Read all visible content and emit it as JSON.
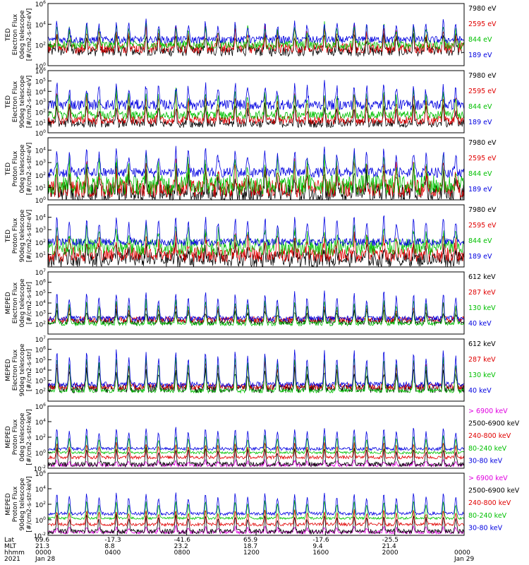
{
  "chart_data": [
    {
      "type": "line",
      "title": "",
      "ylabel_lines": [
        "TED",
        "Electron Flux",
        "0deg telescope",
        "[#/cm2-s-str-eV]"
      ],
      "ylim": [
        1,
        1000000
      ],
      "yscale": "log",
      "yticks": [
        {
          "base": "10",
          "exp": "0"
        },
        {
          "base": "10",
          "exp": "2"
        },
        {
          "base": "10",
          "exp": "4"
        },
        {
          "base": "10",
          "exp": "6"
        }
      ],
      "series": [
        {
          "name": "7980 eV",
          "color": "#000000",
          "baseline": 1.4,
          "peak": 3.0,
          "noise": 0.5
        },
        {
          "name": "2595 eV",
          "color": "#e00000",
          "baseline": 1.7,
          "peak": 3.6,
          "noise": 0.5
        },
        {
          "name": "844 eV",
          "color": "#00c000",
          "baseline": 2.0,
          "peak": 3.9,
          "noise": 0.4
        },
        {
          "name": "189 eV",
          "color": "#0000e0",
          "baseline": 2.5,
          "peak": 4.2,
          "noise": 0.35
        }
      ]
    },
    {
      "type": "line",
      "title": "",
      "ylabel_lines": [
        "TED",
        "Electron Flux",
        "90deg telescope",
        "[#/cm2-s-str-eV]"
      ],
      "ylim": [
        1,
        1000000
      ],
      "yscale": "log",
      "yticks": [
        {
          "base": "10",
          "exp": "0"
        },
        {
          "base": "10",
          "exp": "1"
        },
        {
          "base": "10",
          "exp": "2"
        },
        {
          "base": "10",
          "exp": "3"
        },
        {
          "base": "10",
          "exp": "4"
        },
        {
          "base": "10",
          "exp": "5"
        },
        {
          "base": "10",
          "exp": "6"
        }
      ],
      "series": [
        {
          "name": "7980 eV",
          "color": "#000000",
          "baseline": 0.9,
          "peak": 2.6,
          "noise": 0.4
        },
        {
          "name": "2595 eV",
          "color": "#e00000",
          "baseline": 1.2,
          "peak": 3.6,
          "noise": 0.4
        },
        {
          "name": "844 eV",
          "color": "#00c000",
          "baseline": 1.7,
          "peak": 4.0,
          "noise": 0.4
        },
        {
          "name": "189 eV",
          "color": "#0000e0",
          "baseline": 2.7,
          "peak": 4.6,
          "noise": 0.5
        }
      ]
    },
    {
      "type": "line",
      "title": "",
      "ylabel_lines": [
        "TED",
        "Proton Flux",
        "0deg telescope",
        "[#/cm2-s-str-eV]"
      ],
      "ylim": [
        1,
        100000
      ],
      "yscale": "log",
      "yticks": [
        {
          "base": "10",
          "exp": "0"
        },
        {
          "base": "10",
          "exp": "1"
        },
        {
          "base": "10",
          "exp": "2"
        },
        {
          "base": "10",
          "exp": "3"
        },
        {
          "base": "10",
          "exp": "4"
        }
      ],
      "series": [
        {
          "name": "7980 eV",
          "color": "#000000",
          "baseline": 0.5,
          "peak": 2.2,
          "noise": 0.8
        },
        {
          "name": "2595 eV",
          "color": "#e00000",
          "baseline": 0.9,
          "peak": 2.8,
          "noise": 0.7
        },
        {
          "name": "844 eV",
          "color": "#00c000",
          "baseline": 1.2,
          "peak": 3.2,
          "noise": 0.8
        },
        {
          "name": "189 eV",
          "color": "#0000e0",
          "baseline": 2.2,
          "peak": 4.0,
          "noise": 0.4
        }
      ]
    },
    {
      "type": "line",
      "title": "",
      "ylabel_lines": [
        "TED",
        "Proton Flux",
        "90deg telescope",
        "[#/cm2-s-str-eV]"
      ],
      "ylim": [
        1,
        100000
      ],
      "yscale": "log",
      "yticks": [
        {
          "base": "10",
          "exp": "1"
        },
        {
          "base": "10",
          "exp": "2"
        },
        {
          "base": "10",
          "exp": "3"
        },
        {
          "base": "10",
          "exp": "4"
        }
      ],
      "series": [
        {
          "name": "7980 eV",
          "color": "#000000",
          "baseline": 0.6,
          "peak": 1.6,
          "noise": 0.6
        },
        {
          "name": "2595 eV",
          "color": "#e00000",
          "baseline": 1.0,
          "peak": 2.4,
          "noise": 0.6
        },
        {
          "name": "844 eV",
          "color": "#00c000",
          "baseline": 1.6,
          "peak": 3.0,
          "noise": 0.7
        },
        {
          "name": "189 eV",
          "color": "#0000e0",
          "baseline": 2.0,
          "peak": 4.0,
          "noise": 0.3
        }
      ]
    },
    {
      "type": "line",
      "title": "",
      "ylabel_lines": [
        "MEPED",
        "Electron Flux",
        "0deg telescope",
        "[#/cm2-s-str]"
      ],
      "ylim": [
        10,
        10000000
      ],
      "yscale": "log",
      "yticks": [
        {
          "base": "10",
          "exp": "2"
        },
        {
          "base": "10",
          "exp": "3"
        },
        {
          "base": "10",
          "exp": "4"
        },
        {
          "base": "10",
          "exp": "5"
        },
        {
          "base": "10",
          "exp": "6"
        },
        {
          "base": "10",
          "exp": "7"
        }
      ],
      "series": [
        {
          "name": "612 keV",
          "color": "#000000",
          "baseline": 2.2,
          "peak": 3.2,
          "noise": 0.3
        },
        {
          "name": "287 keV",
          "color": "#e00000",
          "baseline": 2.4,
          "peak": 3.8,
          "noise": 0.3
        },
        {
          "name": "130 keV",
          "color": "#00c000",
          "baseline": 2.0,
          "peak": 4.2,
          "noise": 0.2
        },
        {
          "name": "40 keV",
          "color": "#0000e0",
          "baseline": 2.5,
          "peak": 5.0,
          "noise": 0.25
        }
      ]
    },
    {
      "type": "line",
      "title": "",
      "ylabel_lines": [
        "MEPED",
        "Electron Flux",
        "90deg telescope",
        "[#/cm2-s-str]"
      ],
      "ylim": [
        10,
        10000000
      ],
      "yscale": "log",
      "yticks": [
        {
          "base": "10",
          "exp": "2"
        },
        {
          "base": "10",
          "exp": "3"
        },
        {
          "base": "10",
          "exp": "4"
        },
        {
          "base": "10",
          "exp": "5"
        },
        {
          "base": "10",
          "exp": "6"
        },
        {
          "base": "10",
          "exp": "7"
        }
      ],
      "series": [
        {
          "name": "612 keV",
          "color": "#000000",
          "baseline": 2.2,
          "peak": 4.0,
          "noise": 0.4
        },
        {
          "name": "287 keV",
          "color": "#e00000",
          "baseline": 2.4,
          "peak": 4.8,
          "noise": 0.3
        },
        {
          "name": "130 keV",
          "color": "#00c000",
          "baseline": 2.0,
          "peak": 5.2,
          "noise": 0.2
        },
        {
          "name": "40 keV",
          "color": "#0000e0",
          "baseline": 2.6,
          "peak": 5.8,
          "noise": 0.25
        }
      ]
    },
    {
      "type": "line",
      "title": "",
      "ylabel_lines": [
        "MEPED",
        "Proton Flux",
        "0deg telescope",
        "[#/cm2-s-str-keV]"
      ],
      "ylim": [
        0.01,
        1000000
      ],
      "yscale": "log",
      "yticks": [
        {
          "base": "10",
          "exp": "-2"
        },
        {
          "base": "10",
          "exp": "0"
        },
        {
          "base": "10",
          "exp": "2"
        },
        {
          "base": "10",
          "exp": "4"
        },
        {
          "base": "10",
          "exp": "6"
        }
      ],
      "series": [
        {
          "name": "> 6900 keV",
          "color": "#e000e0",
          "baseline": -1.6,
          "peak": -1.0,
          "noise": 0.2
        },
        {
          "name": "2500-6900 keV",
          "color": "#000000",
          "baseline": -1.5,
          "peak": 0.6,
          "noise": 0.3
        },
        {
          "name": "240-800 keV",
          "color": "#e00000",
          "baseline": -0.6,
          "peak": 1.2,
          "noise": 0.2
        },
        {
          "name": "80-240 keV",
          "color": "#00c000",
          "baseline": 0.0,
          "peak": 2.2,
          "noise": 0.15
        },
        {
          "name": "30-80 keV",
          "color": "#0000e0",
          "baseline": 0.5,
          "peak": 3.2,
          "noise": 0.2
        }
      ]
    },
    {
      "type": "line",
      "title": "",
      "ylabel_lines": [
        "MEPED",
        "Proton Flux",
        "90deg telescope",
        "[#/cm2-s-str-keV]"
      ],
      "ylim": [
        0.01,
        1000000
      ],
      "yscale": "log",
      "yticks": [
        {
          "base": "10",
          "exp": "-2"
        },
        {
          "base": "10",
          "exp": "0"
        },
        {
          "base": "10",
          "exp": "2"
        },
        {
          "base": "10",
          "exp": "4"
        },
        {
          "base": "10",
          "exp": "6"
        }
      ],
      "series": [
        {
          "name": "> 6900 keV",
          "color": "#e000e0",
          "baseline": -1.6,
          "peak": -0.9,
          "noise": 0.2
        },
        {
          "name": "2500-6900 keV",
          "color": "#000000",
          "baseline": -1.5,
          "peak": 0.5,
          "noise": 0.3
        },
        {
          "name": "240-800 keV",
          "color": "#e00000",
          "baseline": -0.6,
          "peak": 1.2,
          "noise": 0.2
        },
        {
          "name": "80-240 keV",
          "color": "#00c000",
          "baseline": 0.2,
          "peak": 2.4,
          "noise": 0.15
        },
        {
          "name": "30-80 keV",
          "color": "#0000e0",
          "baseline": 0.8,
          "peak": 3.4,
          "noise": 0.2
        }
      ]
    }
  ],
  "x_axis": {
    "row_labels": [
      "Lat",
      "MLT",
      "hhmm",
      "2021"
    ],
    "columns": [
      {
        "lat": "69.6",
        "mlt": "21.3",
        "hhmm": "0000",
        "date": "Jan 28"
      },
      {
        "lat": "-17.3",
        "mlt": "8.8",
        "hhmm": "0400",
        "date": ""
      },
      {
        "lat": "-41.6",
        "mlt": "23.2",
        "hhmm": "0800",
        "date": ""
      },
      {
        "lat": "65.9",
        "mlt": "18.7",
        "hhmm": "1200",
        "date": ""
      },
      {
        "lat": "-17.6",
        "mlt": "9.4",
        "hhmm": "1600",
        "date": ""
      },
      {
        "lat": "-25.5",
        "mlt": "21.4",
        "hhmm": "2000",
        "date": ""
      },
      {
        "lat": "",
        "mlt": "",
        "hhmm": "0000",
        "date": "Jan 29"
      }
    ],
    "orbit_count": 14
  }
}
